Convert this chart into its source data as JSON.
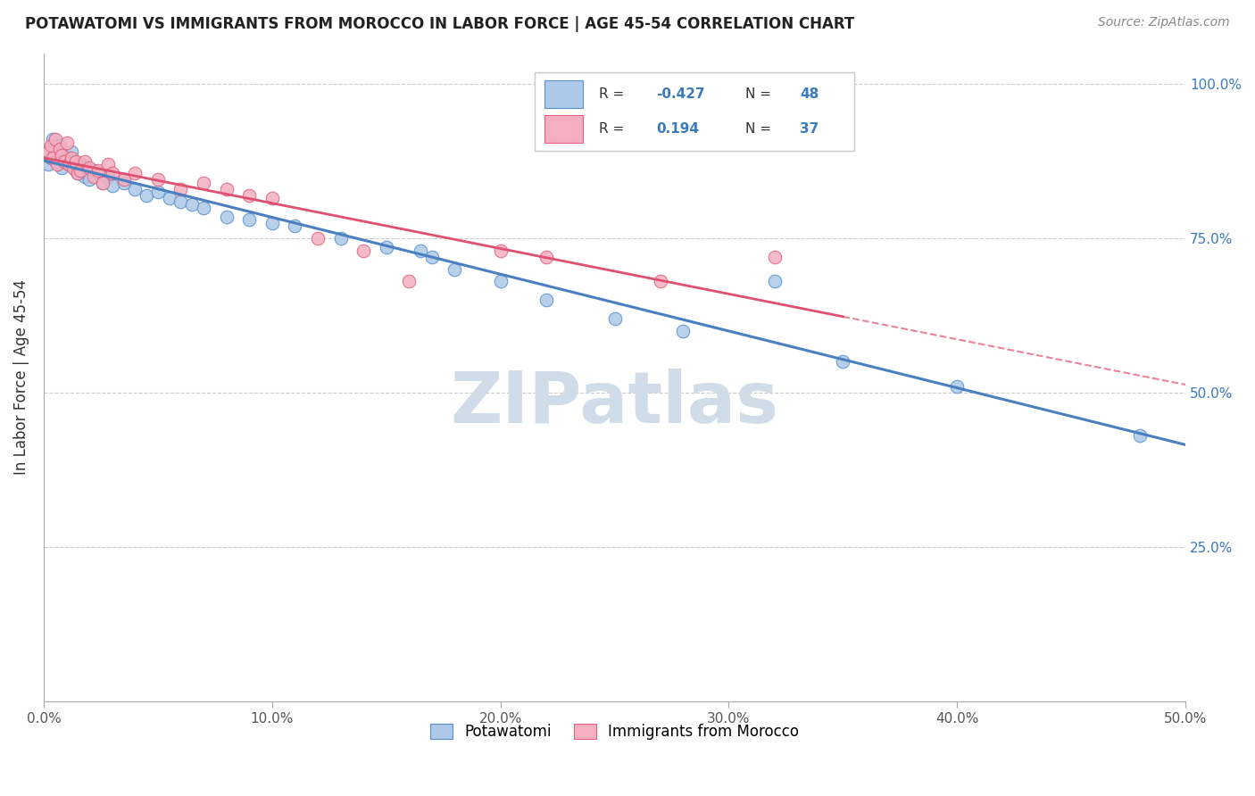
{
  "title": "POTAWATOMI VS IMMIGRANTS FROM MOROCCO IN LABOR FORCE | AGE 45-54 CORRELATION CHART",
  "source": "Source: ZipAtlas.com",
  "ylabel": "In Labor Force | Age 45-54",
  "xlim": [
    0.0,
    0.5
  ],
  "ylim": [
    0.0,
    1.05
  ],
  "xtick_vals": [
    0.0,
    0.1,
    0.2,
    0.3,
    0.4,
    0.5
  ],
  "xtick_labels": [
    "0.0%",
    "10.0%",
    "20.0%",
    "30.0%",
    "40.0%",
    "50.0%"
  ],
  "ytick_vals": [
    0.25,
    0.5,
    0.75,
    1.0
  ],
  "ytick_labels": [
    "25.0%",
    "50.0%",
    "75.0%",
    "100.0%"
  ],
  "r_blue": -0.427,
  "n_blue": 48,
  "r_pink": 0.194,
  "n_pink": 37,
  "blue_fill": "#adc8e8",
  "blue_edge": "#5590cc",
  "pink_fill": "#f5afc0",
  "pink_edge": "#e06080",
  "blue_line": "#4a7fc0",
  "pink_line": "#e05070",
  "watermark_color": "#d0dce8",
  "grid_color": "#cccccc",
  "blue_scatter_x": [
    0.002,
    0.003,
    0.004,
    0.005,
    0.006,
    0.007,
    0.008,
    0.009,
    0.01,
    0.011,
    0.012,
    0.013,
    0.014,
    0.015,
    0.016,
    0.017,
    0.018,
    0.02,
    0.022,
    0.024,
    0.026,
    0.028,
    0.03,
    0.035,
    0.04,
    0.045,
    0.05,
    0.055,
    0.06,
    0.065,
    0.07,
    0.08,
    0.09,
    0.1,
    0.11,
    0.13,
    0.15,
    0.165,
    0.17,
    0.18,
    0.2,
    0.22,
    0.25,
    0.28,
    0.32,
    0.35,
    0.4,
    0.48
  ],
  "blue_scatter_y": [
    0.87,
    0.88,
    0.91,
    0.895,
    0.875,
    0.9,
    0.865,
    0.885,
    0.88,
    0.87,
    0.89,
    0.875,
    0.86,
    0.855,
    0.87,
    0.865,
    0.85,
    0.845,
    0.86,
    0.855,
    0.84,
    0.85,
    0.835,
    0.84,
    0.83,
    0.82,
    0.825,
    0.815,
    0.81,
    0.805,
    0.8,
    0.785,
    0.78,
    0.775,
    0.77,
    0.75,
    0.735,
    0.73,
    0.72,
    0.7,
    0.68,
    0.65,
    0.62,
    0.6,
    0.68,
    0.55,
    0.51,
    0.43
  ],
  "pink_scatter_x": [
    0.002,
    0.003,
    0.004,
    0.005,
    0.006,
    0.007,
    0.008,
    0.009,
    0.01,
    0.011,
    0.012,
    0.013,
    0.014,
    0.015,
    0.016,
    0.018,
    0.02,
    0.022,
    0.024,
    0.026,
    0.028,
    0.03,
    0.035,
    0.04,
    0.05,
    0.06,
    0.07,
    0.08,
    0.09,
    0.1,
    0.12,
    0.14,
    0.16,
    0.2,
    0.22,
    0.27,
    0.32
  ],
  "pink_scatter_y": [
    0.89,
    0.9,
    0.88,
    0.91,
    0.87,
    0.895,
    0.885,
    0.875,
    0.905,
    0.87,
    0.88,
    0.865,
    0.875,
    0.855,
    0.86,
    0.875,
    0.865,
    0.85,
    0.86,
    0.84,
    0.87,
    0.855,
    0.845,
    0.855,
    0.845,
    0.83,
    0.84,
    0.83,
    0.82,
    0.815,
    0.75,
    0.73,
    0.68,
    0.73,
    0.72,
    0.68,
    0.72
  ]
}
